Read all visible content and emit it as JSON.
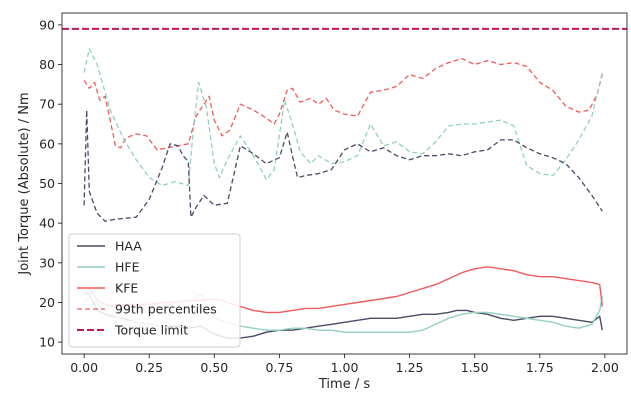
{
  "chart_data": {
    "type": "line",
    "xlabel": "Time / s",
    "ylabel": "Joint Torque (Absolute) / Nm",
    "xlim": [
      -0.085,
      2.085
    ],
    "ylim": [
      7.0,
      93.0
    ],
    "xticks": [
      0.0,
      0.25,
      0.5,
      0.75,
      1.0,
      1.25,
      1.5,
      1.75,
      2.0
    ],
    "xtick_labels": [
      "0.00",
      "0.25",
      "0.50",
      "0.75",
      "1.00",
      "1.25",
      "1.50",
      "1.75",
      "2.00"
    ],
    "yticks": [
      10,
      20,
      30,
      40,
      50,
      60,
      70,
      80,
      90
    ],
    "ytick_labels": [
      "10",
      "20",
      "30",
      "40",
      "50",
      "60",
      "70",
      "80",
      "90"
    ],
    "grid": false,
    "legend_position": "lower-left",
    "colors": {
      "HAA": "#4a4a68",
      "HFE": "#94cfc0",
      "KFE": "#ef5b5b",
      "limit": "#c2185b"
    },
    "torque_limit": 89,
    "series": [
      {
        "name": "HAA",
        "key": "HAA",
        "style": "solid",
        "points": [
          [
            0.0,
            22.5
          ],
          [
            0.02,
            22.0
          ],
          [
            0.05,
            18.0
          ],
          [
            0.1,
            16.5
          ],
          [
            0.15,
            16.0
          ],
          [
            0.2,
            15.0
          ],
          [
            0.25,
            14.5
          ],
          [
            0.3,
            14.0
          ],
          [
            0.35,
            14.0
          ],
          [
            0.4,
            13.5
          ],
          [
            0.45,
            14.0
          ],
          [
            0.5,
            12.0
          ],
          [
            0.55,
            11.0
          ],
          [
            0.6,
            11.0
          ],
          [
            0.65,
            11.5
          ],
          [
            0.7,
            12.5
          ],
          [
            0.75,
            13.0
          ],
          [
            0.8,
            13.0
          ],
          [
            0.85,
            13.5
          ],
          [
            0.9,
            14.0
          ],
          [
            0.95,
            14.5
          ],
          [
            1.0,
            15.0
          ],
          [
            1.05,
            15.5
          ],
          [
            1.1,
            16.0
          ],
          [
            1.15,
            16.0
          ],
          [
            1.2,
            16.0
          ],
          [
            1.25,
            16.5
          ],
          [
            1.3,
            17.0
          ],
          [
            1.35,
            17.0
          ],
          [
            1.4,
            17.5
          ],
          [
            1.43,
            18.0
          ],
          [
            1.47,
            18.0
          ],
          [
            1.5,
            17.5
          ],
          [
            1.55,
            17.0
          ],
          [
            1.6,
            16.0
          ],
          [
            1.65,
            15.5
          ],
          [
            1.7,
            16.0
          ],
          [
            1.75,
            16.5
          ],
          [
            1.8,
            16.5
          ],
          [
            1.85,
            16.0
          ],
          [
            1.9,
            15.5
          ],
          [
            1.95,
            15.0
          ],
          [
            1.98,
            16.5
          ],
          [
            1.99,
            13.0
          ]
        ]
      },
      {
        "name": "HFE",
        "key": "HFE",
        "style": "solid",
        "points": [
          [
            0.0,
            20.0
          ],
          [
            0.02,
            21.5
          ],
          [
            0.05,
            19.5
          ],
          [
            0.1,
            17.0
          ],
          [
            0.15,
            15.5
          ],
          [
            0.2,
            15.0
          ],
          [
            0.25,
            14.5
          ],
          [
            0.3,
            14.0
          ],
          [
            0.35,
            13.0
          ],
          [
            0.4,
            12.5
          ],
          [
            0.43,
            21.5
          ],
          [
            0.45,
            22.0
          ],
          [
            0.5,
            16.0
          ],
          [
            0.55,
            15.0
          ],
          [
            0.6,
            14.0
          ],
          [
            0.65,
            13.5
          ],
          [
            0.7,
            13.0
          ],
          [
            0.75,
            13.0
          ],
          [
            0.8,
            13.5
          ],
          [
            0.85,
            13.5
          ],
          [
            0.9,
            13.0
          ],
          [
            0.95,
            13.0
          ],
          [
            1.0,
            12.5
          ],
          [
            1.05,
            12.5
          ],
          [
            1.1,
            12.5
          ],
          [
            1.15,
            12.5
          ],
          [
            1.2,
            12.5
          ],
          [
            1.25,
            12.5
          ],
          [
            1.3,
            13.0
          ],
          [
            1.35,
            14.5
          ],
          [
            1.4,
            16.0
          ],
          [
            1.45,
            17.0
          ],
          [
            1.5,
            17.5
          ],
          [
            1.55,
            17.5
          ],
          [
            1.6,
            17.0
          ],
          [
            1.65,
            16.5
          ],
          [
            1.7,
            16.0
          ],
          [
            1.75,
            15.5
          ],
          [
            1.8,
            15.0
          ],
          [
            1.85,
            14.0
          ],
          [
            1.9,
            13.5
          ],
          [
            1.95,
            14.5
          ],
          [
            1.98,
            18.0
          ],
          [
            1.99,
            21.5
          ]
        ]
      },
      {
        "name": "KFE",
        "key": "KFE",
        "style": "solid",
        "points": [
          [
            0.0,
            24.0
          ],
          [
            0.02,
            23.5
          ],
          [
            0.05,
            20.5
          ],
          [
            0.1,
            19.0
          ],
          [
            0.15,
            19.5
          ],
          [
            0.2,
            19.5
          ],
          [
            0.25,
            19.5
          ],
          [
            0.3,
            20.0
          ],
          [
            0.35,
            20.0
          ],
          [
            0.4,
            20.5
          ],
          [
            0.45,
            20.5
          ],
          [
            0.5,
            21.0
          ],
          [
            0.55,
            20.0
          ],
          [
            0.6,
            19.0
          ],
          [
            0.65,
            18.0
          ],
          [
            0.7,
            17.5
          ],
          [
            0.75,
            17.5
          ],
          [
            0.8,
            18.0
          ],
          [
            0.85,
            18.5
          ],
          [
            0.9,
            18.5
          ],
          [
            0.95,
            19.0
          ],
          [
            1.0,
            19.5
          ],
          [
            1.05,
            20.0
          ],
          [
            1.1,
            20.5
          ],
          [
            1.15,
            21.0
          ],
          [
            1.2,
            21.5
          ],
          [
            1.25,
            22.5
          ],
          [
            1.3,
            23.5
          ],
          [
            1.35,
            24.5
          ],
          [
            1.4,
            26.0
          ],
          [
            1.45,
            27.5
          ],
          [
            1.5,
            28.5
          ],
          [
            1.55,
            29.0
          ],
          [
            1.6,
            28.5
          ],
          [
            1.65,
            28.0
          ],
          [
            1.7,
            27.0
          ],
          [
            1.75,
            26.5
          ],
          [
            1.8,
            26.5
          ],
          [
            1.85,
            26.0
          ],
          [
            1.9,
            25.5
          ],
          [
            1.95,
            25.0
          ],
          [
            1.98,
            24.5
          ],
          [
            1.99,
            19.0
          ]
        ]
      },
      {
        "name": "99th percentiles",
        "key": "KFE",
        "style": "dashed",
        "points": [
          [
            0.0,
            76.0
          ],
          [
            0.02,
            74.0
          ],
          [
            0.04,
            75.5
          ],
          [
            0.06,
            71.0
          ],
          [
            0.08,
            72.0
          ],
          [
            0.1,
            66.0
          ],
          [
            0.12,
            59.5
          ],
          [
            0.14,
            59.0
          ],
          [
            0.16,
            61.5
          ],
          [
            0.2,
            62.5
          ],
          [
            0.24,
            62.0
          ],
          [
            0.28,
            58.5
          ],
          [
            0.32,
            59.0
          ],
          [
            0.36,
            59.5
          ],
          [
            0.4,
            60.0
          ],
          [
            0.43,
            67.0
          ],
          [
            0.45,
            69.0
          ],
          [
            0.48,
            72.0
          ],
          [
            0.5,
            66.0
          ],
          [
            0.53,
            62.0
          ],
          [
            0.56,
            63.5
          ],
          [
            0.6,
            70.0
          ],
          [
            0.65,
            68.5
          ],
          [
            0.7,
            66.5
          ],
          [
            0.73,
            65.0
          ],
          [
            0.75,
            67.5
          ],
          [
            0.78,
            73.5
          ],
          [
            0.8,
            74.0
          ],
          [
            0.83,
            70.5
          ],
          [
            0.87,
            71.5
          ],
          [
            0.9,
            70.0
          ],
          [
            0.93,
            71.5
          ],
          [
            0.96,
            68.5
          ],
          [
            1.0,
            67.5
          ],
          [
            1.05,
            67.0
          ],
          [
            1.1,
            73.0
          ],
          [
            1.15,
            73.5
          ],
          [
            1.2,
            74.5
          ],
          [
            1.25,
            77.5
          ],
          [
            1.3,
            76.5
          ],
          [
            1.35,
            79.0
          ],
          [
            1.4,
            80.5
          ],
          [
            1.45,
            81.5
          ],
          [
            1.5,
            80.0
          ],
          [
            1.55,
            81.0
          ],
          [
            1.6,
            80.0
          ],
          [
            1.65,
            80.5
          ],
          [
            1.7,
            79.5
          ],
          [
            1.75,
            75.5
          ],
          [
            1.8,
            73.5
          ],
          [
            1.85,
            69.5
          ],
          [
            1.9,
            68.0
          ],
          [
            1.94,
            68.5
          ],
          [
            1.97,
            72.5
          ],
          [
            1.99,
            77.5
          ]
        ]
      },
      {
        "name": "",
        "key": "HFE",
        "style": "dashed",
        "points": [
          [
            0.0,
            78.0
          ],
          [
            0.02,
            84.0
          ],
          [
            0.05,
            80.0
          ],
          [
            0.1,
            68.5
          ],
          [
            0.15,
            61.5
          ],
          [
            0.2,
            56.0
          ],
          [
            0.25,
            51.5
          ],
          [
            0.3,
            49.5
          ],
          [
            0.35,
            50.5
          ],
          [
            0.4,
            49.5
          ],
          [
            0.42,
            64.0
          ],
          [
            0.44,
            75.5
          ],
          [
            0.47,
            69.0
          ],
          [
            0.5,
            55.0
          ],
          [
            0.52,
            51.5
          ],
          [
            0.55,
            56.0
          ],
          [
            0.6,
            62.0
          ],
          [
            0.65,
            57.0
          ],
          [
            0.7,
            51.0
          ],
          [
            0.73,
            53.5
          ],
          [
            0.77,
            71.0
          ],
          [
            0.8,
            65.0
          ],
          [
            0.83,
            58.0
          ],
          [
            0.87,
            55.0
          ],
          [
            0.9,
            57.0
          ],
          [
            0.95,
            55.0
          ],
          [
            1.0,
            55.5
          ],
          [
            1.05,
            57.0
          ],
          [
            1.1,
            65.0
          ],
          [
            1.15,
            59.5
          ],
          [
            1.2,
            60.5
          ],
          [
            1.25,
            58.0
          ],
          [
            1.3,
            57.5
          ],
          [
            1.35,
            60.5
          ],
          [
            1.4,
            64.5
          ],
          [
            1.45,
            65.0
          ],
          [
            1.5,
            65.0
          ],
          [
            1.55,
            65.5
          ],
          [
            1.6,
            66.0
          ],
          [
            1.65,
            64.5
          ],
          [
            1.7,
            54.5
          ],
          [
            1.75,
            52.5
          ],
          [
            1.8,
            52.0
          ],
          [
            1.85,
            56.0
          ],
          [
            1.9,
            61.0
          ],
          [
            1.95,
            67.0
          ],
          [
            1.99,
            78.0
          ]
        ]
      },
      {
        "name": "",
        "key": "HAA",
        "style": "dashed",
        "points": [
          [
            0.0,
            44.5
          ],
          [
            0.01,
            68.5
          ],
          [
            0.02,
            48.0
          ],
          [
            0.05,
            42.5
          ],
          [
            0.08,
            40.5
          ],
          [
            0.12,
            41.0
          ],
          [
            0.2,
            41.5
          ],
          [
            0.25,
            46.0
          ],
          [
            0.3,
            54.0
          ],
          [
            0.33,
            60.0
          ],
          [
            0.36,
            59.5
          ],
          [
            0.38,
            57.0
          ],
          [
            0.4,
            55.5
          ],
          [
            0.41,
            41.5
          ],
          [
            0.43,
            44.0
          ],
          [
            0.46,
            47.0
          ],
          [
            0.5,
            44.5
          ],
          [
            0.55,
            45.0
          ],
          [
            0.6,
            59.5
          ],
          [
            0.65,
            57.5
          ],
          [
            0.7,
            55.0
          ],
          [
            0.75,
            56.5
          ],
          [
            0.78,
            63.0
          ],
          [
            0.8,
            57.0
          ],
          [
            0.82,
            51.5
          ],
          [
            0.85,
            52.0
          ],
          [
            0.9,
            52.5
          ],
          [
            0.95,
            53.5
          ],
          [
            1.0,
            58.5
          ],
          [
            1.05,
            60.0
          ],
          [
            1.1,
            58.0
          ],
          [
            1.15,
            59.0
          ],
          [
            1.2,
            57.0
          ],
          [
            1.25,
            56.0
          ],
          [
            1.3,
            57.0
          ],
          [
            1.35,
            57.0
          ],
          [
            1.4,
            57.5
          ],
          [
            1.45,
            57.0
          ],
          [
            1.5,
            58.0
          ],
          [
            1.55,
            58.5
          ],
          [
            1.6,
            61.0
          ],
          [
            1.65,
            61.0
          ],
          [
            1.7,
            59.0
          ],
          [
            1.75,
            57.5
          ],
          [
            1.8,
            56.5
          ],
          [
            1.85,
            55.0
          ],
          [
            1.9,
            51.5
          ],
          [
            1.95,
            47.0
          ],
          [
            1.99,
            43.0
          ]
        ]
      }
    ],
    "legend": [
      {
        "label": "HAA",
        "key": "HAA",
        "style": "solid"
      },
      {
        "label": "HFE",
        "key": "HFE",
        "style": "solid"
      },
      {
        "label": "KFE",
        "key": "KFE",
        "style": "solid"
      },
      {
        "label": "99th percentiles",
        "key": "KFE",
        "style": "dashed"
      },
      {
        "label": "Torque limit",
        "key": "limit",
        "style": "limit"
      }
    ]
  }
}
